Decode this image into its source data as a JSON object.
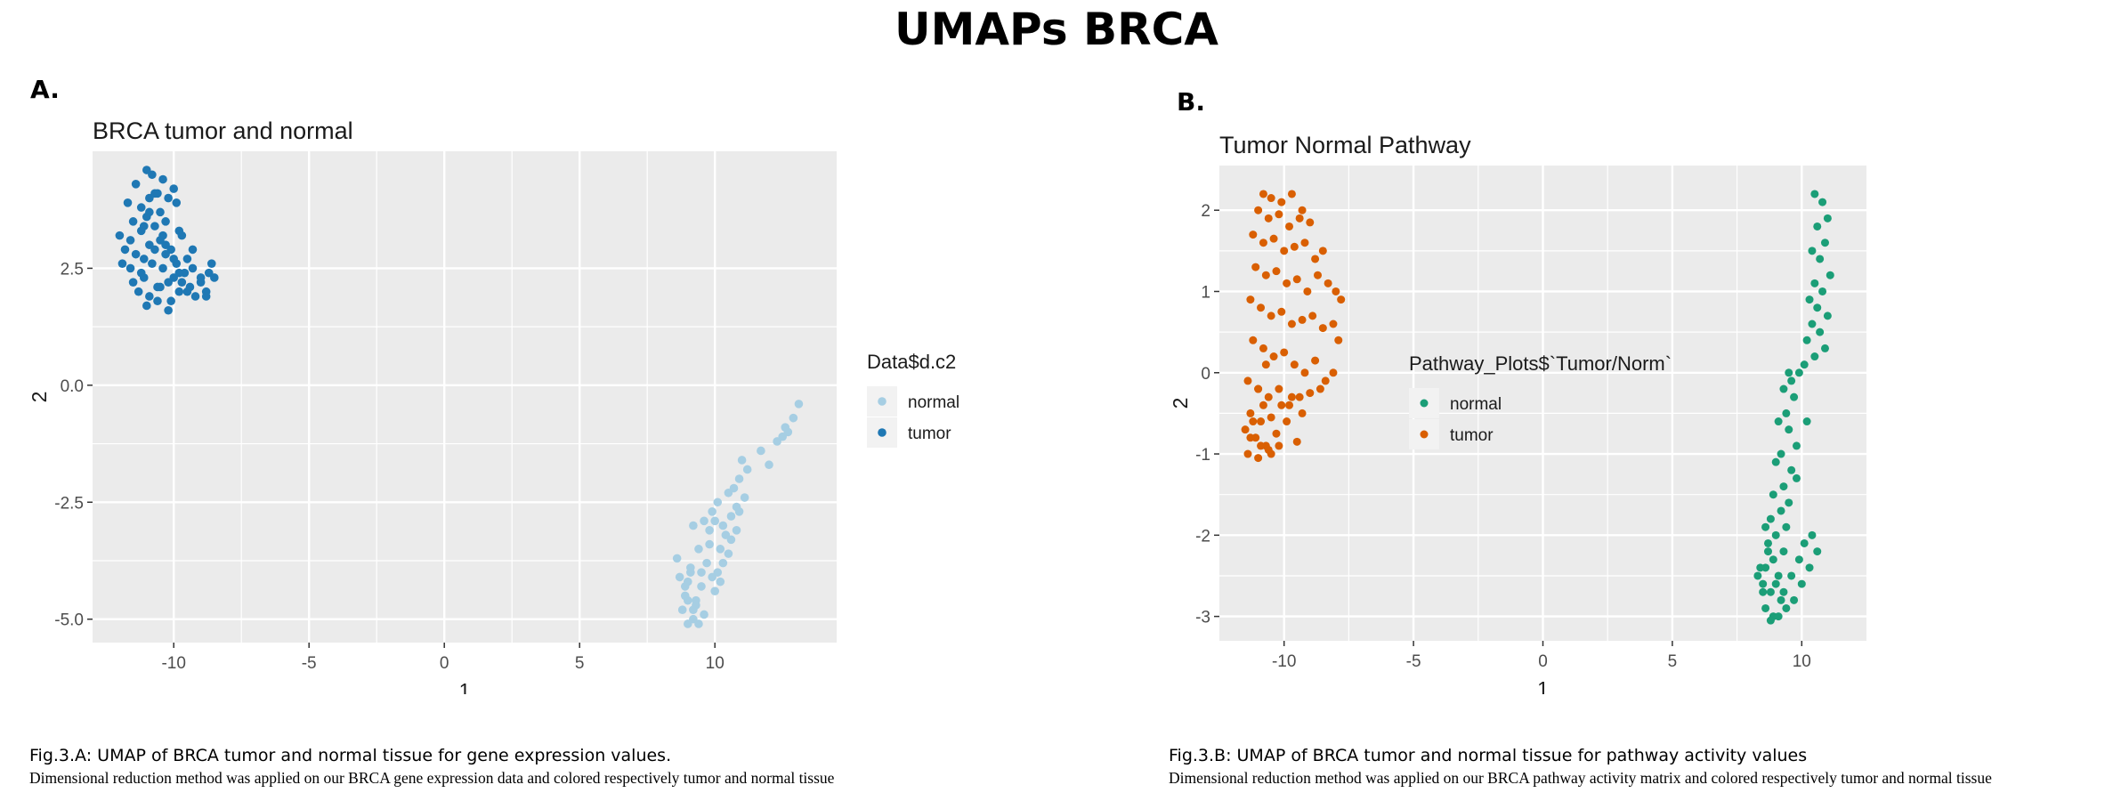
{
  "figure": {
    "title": "UMAPs BRCA",
    "panels": [
      {
        "label": "A.",
        "caption_title": "Fig.3.A: UMAP of BRCA tumor and normal tissue for gene expression values.",
        "caption_body": "Dimensional reduction method was applied on our BRCA gene expression data and colored respectively tumor and normal tissue"
      },
      {
        "label": "B.",
        "caption_title": "Fig.3.B: UMAP of BRCA tumor and normal tissue for pathway activity values",
        "caption_body": "Dimensional reduction method was applied on our BRCA pathway activity matrix and colored respectively tumor and normal tissue"
      }
    ]
  },
  "chart_data": [
    {
      "type": "scatter",
      "title": "BRCA tumor and normal",
      "xlabel": "1",
      "ylabel": "2",
      "xlim": [
        -13,
        14.5
      ],
      "ylim": [
        -5.5,
        5
      ],
      "xticks": [
        -10,
        -5,
        0,
        5,
        10
      ],
      "yticks": [
        -5.0,
        -2.5,
        0.0,
        2.5
      ],
      "ytick_labels": [
        "-5.0",
        "-2.5",
        "0.0",
        "2.5"
      ],
      "grid": true,
      "legend": {
        "title": "Data$d.c2",
        "position": "right"
      },
      "series": [
        {
          "name": "normal",
          "color": "#a6cee3",
          "x": [
            13.1,
            12.9,
            12.7,
            12.5,
            12.3,
            12.6,
            12.0,
            11.7,
            11.2,
            11.0,
            10.9,
            10.7,
            11.1,
            10.8,
            10.5,
            10.6,
            10.9,
            10.3,
            10.1,
            10.4,
            10.8,
            10.2,
            10.0,
            9.9,
            10.6,
            10.3,
            9.8,
            10.1,
            9.6,
            10.5,
            10.2,
            9.9,
            9.4,
            9.2,
            9.7,
            10.0,
            9.5,
            9.1,
            8.9,
            9.3,
            9.0,
            8.8,
            9.6,
            9.2,
            8.7,
            9.4,
            9.0,
            8.9,
            9.1,
            9.3,
            8.6,
            9.5,
            9.8,
            9.2,
            9.0
          ],
          "y": [
            -0.4,
            -0.7,
            -1.0,
            -1.1,
            -1.2,
            -0.9,
            -1.7,
            -1.4,
            -1.8,
            -1.6,
            -2.0,
            -2.2,
            -2.4,
            -2.6,
            -2.3,
            -2.8,
            -2.7,
            -3.0,
            -2.5,
            -3.2,
            -3.1,
            -3.5,
            -2.9,
            -2.7,
            -3.3,
            -3.8,
            -3.1,
            -4.0,
            -2.9,
            -3.6,
            -4.2,
            -4.1,
            -3.5,
            -3.0,
            -3.8,
            -4.4,
            -4.3,
            -4.0,
            -4.5,
            -4.7,
            -4.2,
            -4.8,
            -4.9,
            -5.0,
            -4.1,
            -5.1,
            -4.6,
            -4.3,
            -3.9,
            -4.6,
            -3.7,
            -4.0,
            -3.4,
            -4.8,
            -5.1
          ]
        },
        {
          "name": "tumor",
          "color": "#1f78b4",
          "x": [
            -11.0,
            -10.8,
            -10.4,
            -10.0,
            -11.4,
            -10.6,
            -10.2,
            -11.7,
            -11.2,
            -10.9,
            -10.5,
            -9.9,
            -11.5,
            -11.0,
            -10.7,
            -10.3,
            -9.8,
            -12.0,
            -11.6,
            -11.2,
            -10.9,
            -10.5,
            -10.1,
            -9.7,
            -11.8,
            -11.4,
            -11.1,
            -10.7,
            -10.3,
            -9.9,
            -9.5,
            -11.6,
            -11.2,
            -10.8,
            -10.4,
            -10.0,
            -9.6,
            -9.3,
            -11.9,
            -11.5,
            -11.1,
            -10.6,
            -10.2,
            -9.8,
            -9.4,
            -9.0,
            -8.7,
            -11.3,
            -10.9,
            -10.5,
            -10.1,
            -9.7,
            -9.2,
            -8.8,
            -8.6,
            -11.0,
            -10.6,
            -10.2,
            -9.5,
            -9.0,
            -8.8,
            -10.9,
            -10.4,
            -10.0,
            -9.3,
            -8.5,
            -10.7,
            -10.3,
            -9.8,
            -11.1
          ],
          "y": [
            4.6,
            4.5,
            4.4,
            4.2,
            4.3,
            4.1,
            4.0,
            3.9,
            3.8,
            4.0,
            3.7,
            3.9,
            3.5,
            3.6,
            3.4,
            3.5,
            3.3,
            3.2,
            3.1,
            3.3,
            3.0,
            3.1,
            2.9,
            3.2,
            2.9,
            2.8,
            2.7,
            2.9,
            2.8,
            2.6,
            2.7,
            2.5,
            2.4,
            2.6,
            2.5,
            2.3,
            2.4,
            2.5,
            2.6,
            2.2,
            2.3,
            2.1,
            2.2,
            2.0,
            2.1,
            2.3,
            2.4,
            2.0,
            1.9,
            2.1,
            1.8,
            2.2,
            1.9,
            2.0,
            2.6,
            1.7,
            1.8,
            1.6,
            2.0,
            2.2,
            1.9,
            3.7,
            3.2,
            2.7,
            2.9,
            2.3,
            4.1,
            3.0,
            2.4,
            3.4
          ]
        }
      ]
    },
    {
      "type": "scatter",
      "title": "Tumor Normal Pathway",
      "xlabel": "1",
      "ylabel": "2",
      "xlim": [
        -12.5,
        12.5
      ],
      "ylim": [
        -3.3,
        2.55
      ],
      "xticks": [
        -10,
        -5,
        0,
        5,
        10
      ],
      "yticks": [
        -3,
        -2,
        -1,
        0,
        1,
        2
      ],
      "ytick_labels": [
        "-3",
        "-2",
        "-1",
        "0",
        "1",
        "2"
      ],
      "grid": true,
      "legend": {
        "title": "Pathway_Plots$`Tumor/Norm`",
        "position": "right"
      },
      "series": [
        {
          "name": "normal",
          "color": "#1b9e77",
          "x": [
            10.5,
            10.8,
            11.0,
            10.6,
            10.9,
            10.4,
            10.7,
            11.1,
            10.5,
            10.8,
            10.3,
            10.6,
            11.0,
            10.4,
            10.7,
            10.2,
            10.9,
            10.5,
            10.1,
            9.9,
            9.6,
            9.3,
            9.7,
            9.4,
            9.1,
            9.5,
            9.8,
            9.2,
            9.0,
            9.6,
            9.3,
            8.9,
            9.5,
            9.2,
            8.8,
            9.4,
            9.0,
            8.7,
            9.3,
            8.9,
            8.6,
            9.1,
            8.5,
            8.8,
            9.2,
            8.4,
            8.7,
            9.0,
            8.6,
            8.3,
            8.9,
            9.3,
            9.6,
            9.9,
            10.1,
            10.4,
            10.6,
            10.3,
            10.0,
            9.7,
            9.4,
            9.1,
            8.8,
            8.5,
            9.8,
            10.2,
            9.5,
            8.6
          ],
          "y": [
            2.2,
            2.1,
            1.9,
            1.8,
            1.6,
            1.5,
            1.4,
            1.2,
            1.1,
            1.0,
            0.9,
            0.8,
            0.7,
            0.6,
            0.5,
            0.4,
            0.3,
            0.2,
            0.1,
            0.0,
            -0.1,
            -0.2,
            -0.3,
            -0.5,
            -0.6,
            -0.7,
            -0.9,
            -1.0,
            -1.1,
            -1.2,
            -1.4,
            -1.5,
            -1.6,
            -1.7,
            -1.8,
            -1.9,
            -2.0,
            -2.1,
            -2.2,
            -2.3,
            -2.4,
            -2.5,
            -2.6,
            -2.7,
            -2.8,
            -2.4,
            -2.2,
            -2.6,
            -2.9,
            -2.5,
            -3.0,
            -2.7,
            -2.5,
            -2.3,
            -2.1,
            -2.0,
            -2.2,
            -2.4,
            -2.6,
            -2.8,
            -2.9,
            -3.0,
            -3.05,
            -2.7,
            -1.3,
            -0.6,
            0.0,
            -1.9
          ]
        },
        {
          "name": "tumor",
          "color": "#d95f02",
          "x": [
            -10.8,
            -10.5,
            -10.1,
            -9.7,
            -9.3,
            -11.0,
            -10.6,
            -10.2,
            -9.8,
            -9.4,
            -9.0,
            -11.2,
            -10.8,
            -10.4,
            -10.0,
            -9.6,
            -9.2,
            -8.8,
            -8.5,
            -11.1,
            -10.7,
            -10.3,
            -9.9,
            -9.5,
            -9.1,
            -8.7,
            -8.3,
            -8.0,
            -7.8,
            -11.3,
            -10.9,
            -10.5,
            -10.1,
            -9.7,
            -9.3,
            -8.9,
            -8.5,
            -8.1,
            -7.9,
            -11.2,
            -10.8,
            -10.4,
            -10.0,
            -9.6,
            -9.2,
            -8.8,
            -8.4,
            -8.1,
            -11.4,
            -11.0,
            -10.6,
            -10.2,
            -9.8,
            -9.4,
            -9.0,
            -8.6,
            -11.3,
            -10.9,
            -10.5,
            -10.1,
            -9.7,
            -9.3,
            -11.5,
            -11.1,
            -10.7,
            -10.3,
            -9.9,
            -9.5,
            -11.4,
            -11.0,
            -10.6,
            -10.2,
            -11.3,
            -10.9,
            -10.5,
            -11.2,
            -10.8,
            -11.0,
            -10.7
          ],
          "y": [
            2.2,
            2.15,
            2.1,
            2.2,
            2.0,
            2.0,
            1.9,
            1.95,
            1.8,
            1.9,
            1.85,
            1.7,
            1.6,
            1.65,
            1.5,
            1.55,
            1.6,
            1.4,
            1.5,
            1.3,
            1.2,
            1.25,
            1.1,
            1.15,
            1.0,
            1.2,
            1.1,
            1.0,
            0.9,
            0.9,
            0.8,
            0.7,
            0.75,
            0.6,
            0.65,
            0.7,
            0.55,
            0.6,
            0.4,
            0.4,
            0.3,
            0.2,
            0.25,
            0.1,
            0.0,
            0.15,
            -0.1,
            0.0,
            -0.1,
            -0.2,
            -0.3,
            -0.2,
            -0.4,
            -0.3,
            -0.25,
            -0.2,
            -0.5,
            -0.6,
            -0.55,
            -0.4,
            -0.3,
            -0.5,
            -0.7,
            -0.8,
            -0.9,
            -0.75,
            -0.6,
            -0.85,
            -1.0,
            -1.05,
            -0.95,
            -0.9,
            -0.8,
            -0.9,
            -1.0,
            -0.6,
            -0.4,
            -0.2,
            0.1
          ]
        }
      ]
    }
  ]
}
